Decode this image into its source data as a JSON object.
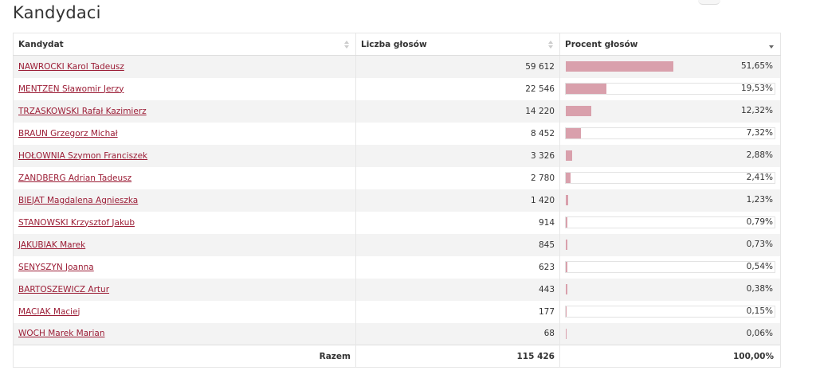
{
  "page": {
    "title": "Kandydaci"
  },
  "table": {
    "headers": {
      "candidate": "Kandydat",
      "votes": "Liczba głosów",
      "percent": "Procent głosów"
    },
    "sort": {
      "column": "percent",
      "direction": "descending"
    },
    "rows": [
      {
        "name": "NAWROCKI Karol Tadeusz",
        "votes": "59 612",
        "percent": "51,65%",
        "percent_value": 51.65
      },
      {
        "name": "MENTZEN Sławomir Jerzy",
        "votes": "22 546",
        "percent": "19,53%",
        "percent_value": 19.53
      },
      {
        "name": "TRZASKOWSKI Rafał Kazimierz",
        "votes": "14 220",
        "percent": "12,32%",
        "percent_value": 12.32
      },
      {
        "name": "BRAUN Grzegorz Michał",
        "votes": "8 452",
        "percent": "7,32%",
        "percent_value": 7.32
      },
      {
        "name": "HOŁOWNIA Szymon Franciszek",
        "votes": "3 326",
        "percent": "2,88%",
        "percent_value": 2.88
      },
      {
        "name": "ZANDBERG Adrian Tadeusz",
        "votes": "2 780",
        "percent": "2,41%",
        "percent_value": 2.41
      },
      {
        "name": "BIEJAT Magdalena Agnieszka",
        "votes": "1 420",
        "percent": "1,23%",
        "percent_value": 1.23
      },
      {
        "name": "STANOWSKI Krzysztof Jakub",
        "votes": "914",
        "percent": "0,79%",
        "percent_value": 0.79
      },
      {
        "name": "JAKUBIAK Marek",
        "votes": "845",
        "percent": "0,73%",
        "percent_value": 0.73
      },
      {
        "name": "SENYSZYN Joanna",
        "votes": "623",
        "percent": "0,54%",
        "percent_value": 0.54
      },
      {
        "name": "BARTOSZEWICZ Artur",
        "votes": "443",
        "percent": "0,38%",
        "percent_value": 0.38
      },
      {
        "name": "MACIAK Maciej",
        "votes": "177",
        "percent": "0,15%",
        "percent_value": 0.15
      },
      {
        "name": "WOCH Marek Marian",
        "votes": "68",
        "percent": "0,06%",
        "percent_value": 0.06
      }
    ],
    "footer": {
      "label": "Razem",
      "votes": "115 426",
      "percent": "100,00%"
    }
  },
  "colors": {
    "link": "#9b1c35",
    "bar": "#d9a0ac",
    "stripe": "#f3f3f3"
  }
}
